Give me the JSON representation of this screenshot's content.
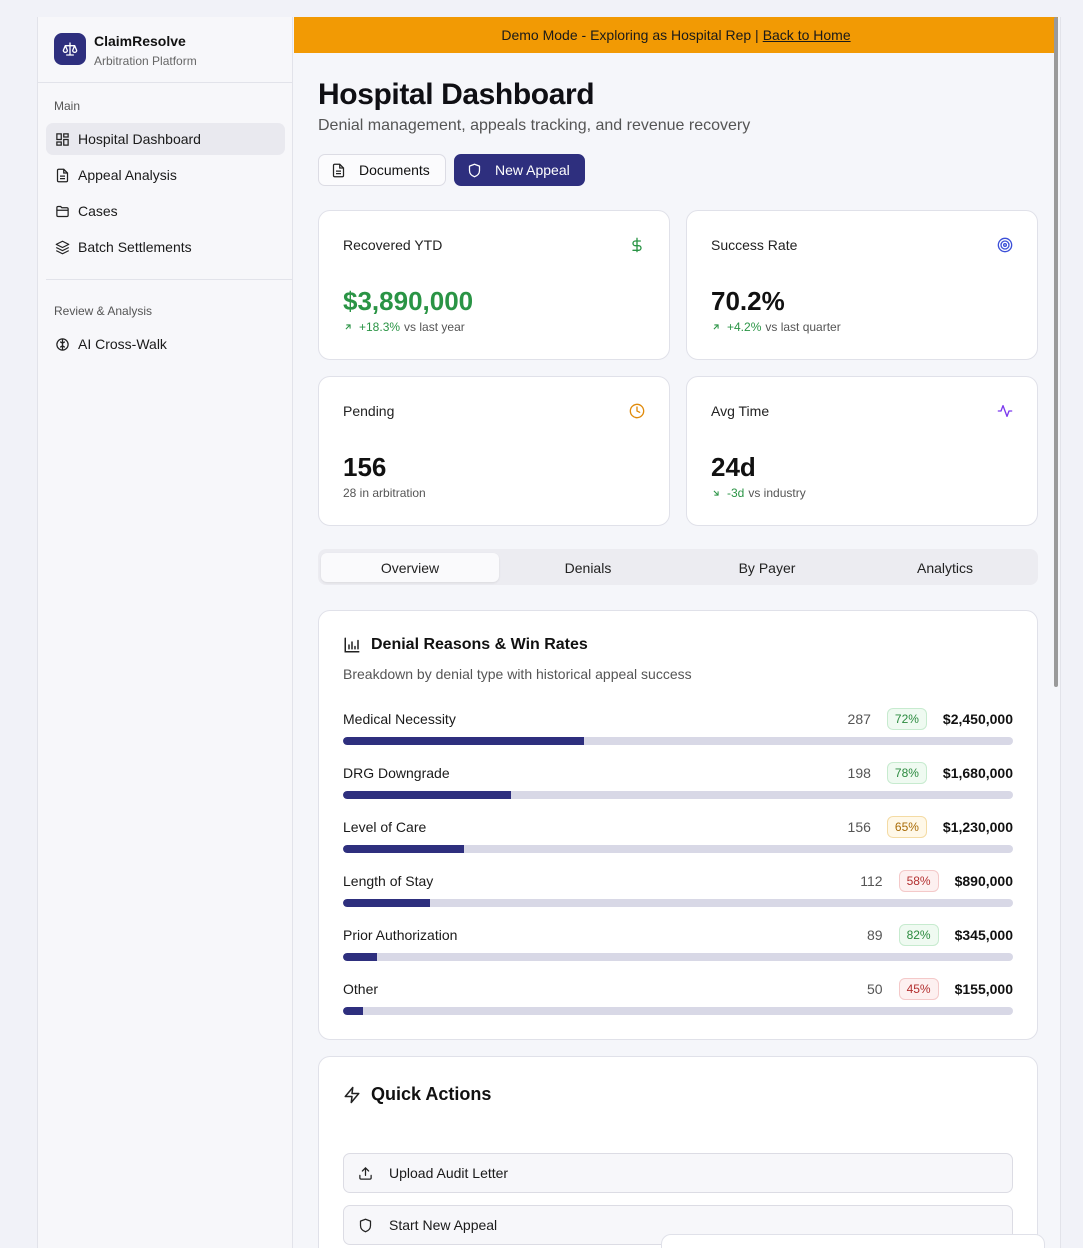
{
  "banner": {
    "text": "Demo Mode - Exploring as Hospital Rep |",
    "link": "Back to Home"
  },
  "brand": {
    "name": "ClaimResolve",
    "subtitle": "Arbitration Platform"
  },
  "sidebar": {
    "sections": [
      {
        "label": "Main",
        "items": [
          {
            "label": "Hospital Dashboard",
            "icon": "dashboard-icon",
            "active": true
          },
          {
            "label": "Appeal Analysis",
            "icon": "document-icon"
          },
          {
            "label": "Cases",
            "icon": "folder-icon"
          },
          {
            "label": "Batch Settlements",
            "icon": "layers-icon"
          }
        ]
      },
      {
        "label": "Review & Analysis",
        "items": [
          {
            "label": "AI Cross-Walk",
            "icon": "brain-icon"
          }
        ]
      }
    ]
  },
  "header": {
    "title": "Hospital Dashboard",
    "subtitle": "Denial management, appeals tracking, and revenue recovery",
    "documents_label": "Documents",
    "new_appeal_label": "New Appeal"
  },
  "stats": [
    {
      "label": "Recovered YTD",
      "value": "$3,890,000",
      "delta": "+18.3%",
      "note": "vs last year",
      "icon": "dollar-icon",
      "color": "#2a9445"
    },
    {
      "label": "Success Rate",
      "value": "70.2%",
      "delta": "+4.2%",
      "note": "vs last quarter",
      "icon": "target-icon",
      "color": "#3b4fd8"
    },
    {
      "label": "Pending",
      "value": "156",
      "delta": "",
      "note": "28 in arbitration",
      "icon": "clock-icon",
      "color": "#e08a0a"
    },
    {
      "label": "Avg Time",
      "value": "24d",
      "delta": "-3d",
      "note": "vs industry",
      "icon": "activity-icon",
      "color": "#7c3aed"
    }
  ],
  "tabs": [
    "Overview",
    "Denials",
    "By Payer",
    "Analytics"
  ],
  "denials": {
    "title": "Denial Reasons & Win Rates",
    "subtitle": "Breakdown by denial type with historical appeal success",
    "rows": [
      {
        "label": "Medical Necessity",
        "count": "287",
        "rate": "72%",
        "amount": "$2,450,000",
        "share": 0.36,
        "tone": "good"
      },
      {
        "label": "DRG Downgrade",
        "count": "198",
        "rate": "78%",
        "amount": "$1,680,000",
        "share": 0.25,
        "tone": "good"
      },
      {
        "label": "Level of Care",
        "count": "156",
        "rate": "65%",
        "amount": "$1,230,000",
        "share": 0.18,
        "tone": "mid"
      },
      {
        "label": "Length of Stay",
        "count": "112",
        "rate": "58%",
        "amount": "$890,000",
        "share": 0.13,
        "tone": "bad"
      },
      {
        "label": "Prior Authorization",
        "count": "89",
        "rate": "82%",
        "amount": "$345,000",
        "share": 0.05,
        "tone": "good"
      },
      {
        "label": "Other",
        "count": "50",
        "rate": "45%",
        "amount": "$155,000",
        "share": 0.03,
        "tone": "bad"
      }
    ]
  },
  "quick_actions": {
    "title": "Quick Actions",
    "items": [
      {
        "label": "Upload Audit Letter",
        "icon": "upload-icon"
      },
      {
        "label": "Start New Appeal",
        "icon": "shield-icon"
      }
    ]
  }
}
